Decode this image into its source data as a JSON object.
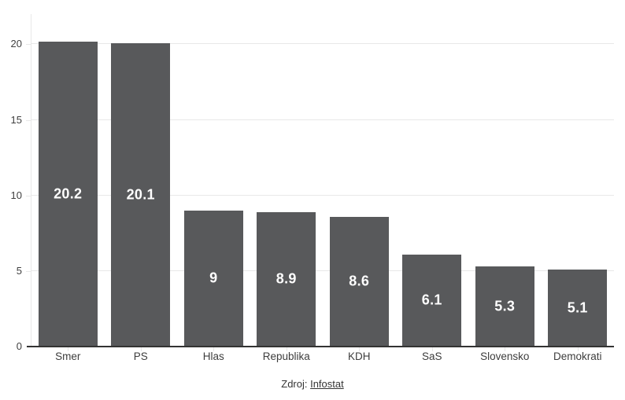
{
  "chart_data": {
    "type": "bar",
    "categories": [
      "Smer",
      "PS",
      "Hlas",
      "Republika",
      "KDH",
      "SaS",
      "Slovensko",
      "Demokrati"
    ],
    "values": [
      20.2,
      20.1,
      9,
      8.9,
      8.6,
      6.1,
      5.3,
      5.1
    ],
    "value_labels": [
      "20.2",
      "20.1",
      "9",
      "8.9",
      "8.6",
      "6.1",
      "5.3",
      "5.1"
    ],
    "ylim": [
      0,
      22
    ],
    "yticks": [
      0,
      5,
      10,
      15,
      20
    ],
    "grid": true,
    "legend": "none",
    "bar_color": "#58595b",
    "value_label_color": "#ffffff"
  },
  "footer": {
    "source_prefix": "Zdroj: ",
    "source_link": "Infostat"
  },
  "colors": {
    "background": "#ffffff",
    "bar": "#58595b",
    "gridline": "#e8e8e8",
    "axis_baseline": "#333333",
    "tick_text": "#404040",
    "source_text": "#333333"
  }
}
